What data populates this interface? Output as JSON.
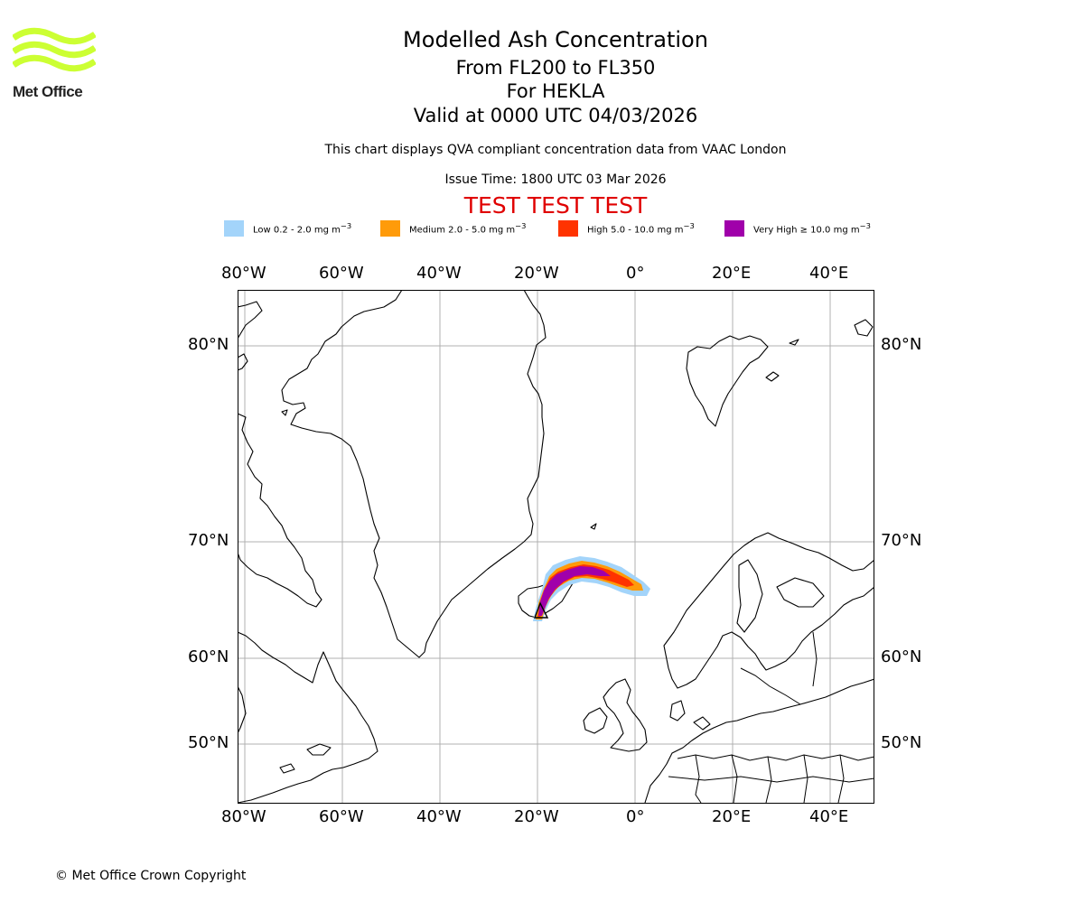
{
  "header": {
    "title": "Modelled Ash Concentration",
    "level": "From FL200 to FL350",
    "volcano": "For HEKLA",
    "valid": "Valid at 0000 UTC 04/03/2026",
    "disclaimer": "This chart displays QVA compliant concentration data from VAAC London",
    "issue_time": "Issue Time: 1800 UTC 03 Mar 2026",
    "test_banner": "TEST TEST TEST"
  },
  "logo": {
    "text": "Met Office",
    "color": "#ccff33"
  },
  "legend": [
    {
      "label": "Low 0.2 - 2.0 mg m",
      "sup": "−3",
      "color": "#a3d4fa"
    },
    {
      "label": "Medium 2.0 - 5.0 mg m",
      "sup": "−3",
      "color": "#ff9b0a"
    },
    {
      "label": "High 5.0 - 10.0 mg m",
      "sup": "−3",
      "color": "#ff3300"
    },
    {
      "label": "Very High  ≥  10.0 mg m",
      "sup": "−3",
      "color": "#a000aa"
    }
  ],
  "map": {
    "lon_labels": [
      "80°W",
      "60°W",
      "40°W",
      "20°W",
      "0°",
      "20°E",
      "40°E"
    ],
    "lat_labels": [
      "80°N",
      "70°N",
      "60°N",
      "50°N"
    ],
    "gridline_color": "#b0b0b0",
    "volcano_marker": "triangle"
  },
  "footer": {
    "copyright": "© Met Office Crown Copyright"
  }
}
